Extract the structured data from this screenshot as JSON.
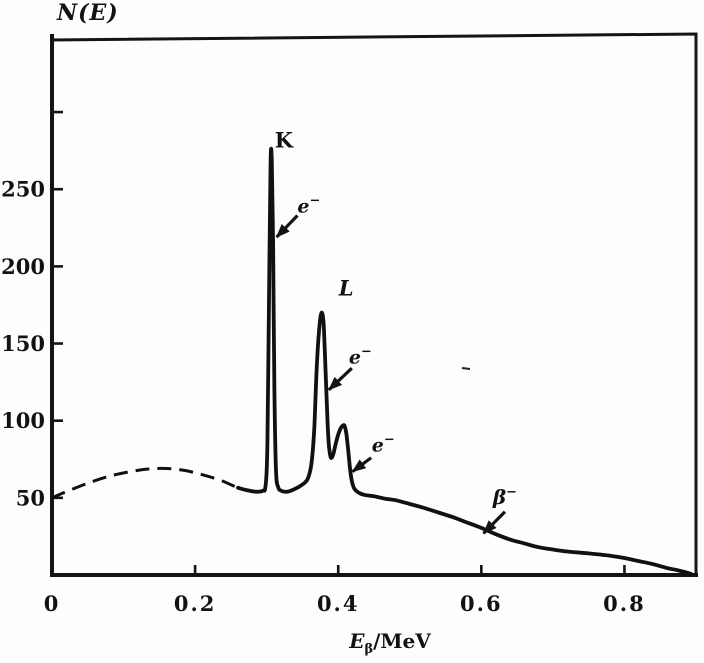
{
  "figure": {
    "y_axis_title": "N(E)",
    "x_axis_title": {
      "symbol": "E",
      "subscript": "β",
      "unit": "/MeV"
    }
  },
  "chart_data": {
    "type": "line",
    "title": "",
    "xlabel": "Eβ/MeV",
    "ylabel": "N(E)",
    "xlim": [
      0,
      0.9
    ],
    "ylim": [
      0,
      348
    ],
    "grid": false,
    "x_ticks": [
      {
        "value": 0,
        "label": "0"
      },
      {
        "value": 0.2,
        "label": "0.2"
      },
      {
        "value": 0.4,
        "label": "0.4"
      },
      {
        "value": 0.6,
        "label": "0.6"
      },
      {
        "value": 0.8,
        "label": "0.8"
      }
    ],
    "y_ticks": [
      {
        "value": 50,
        "label": "50"
      },
      {
        "value": 100,
        "label": "100"
      },
      {
        "value": 150,
        "label": "150"
      },
      {
        "value": 200,
        "label": "200"
      },
      {
        "value": 250,
        "label": "250"
      },
      {
        "value": 300,
        "label": ""
      }
    ],
    "peaks": [
      {
        "label": "K",
        "E": 0.306,
        "N": 268
      },
      {
        "label": "L",
        "E": 0.377,
        "N": 169
      },
      {
        "label": "",
        "E": 0.408,
        "N": 97
      }
    ],
    "series": [
      {
        "name": "beta-continuum-extrapolated",
        "style": "dashed",
        "points": [
          [
            0,
            50
          ],
          [
            0.02,
            54
          ],
          [
            0.05,
            59.5
          ],
          [
            0.08,
            64
          ],
          [
            0.11,
            67
          ],
          [
            0.135,
            68.7
          ],
          [
            0.16,
            69
          ],
          [
            0.185,
            67.8
          ],
          [
            0.21,
            65
          ],
          [
            0.235,
            61.5
          ],
          [
            0.25,
            58.5
          ],
          [
            0.26,
            56.5
          ]
        ]
      },
      {
        "name": "measured-spectrum",
        "style": "solid",
        "points": [
          [
            0.26,
            56.5
          ],
          [
            0.272,
            55
          ],
          [
            0.285,
            54
          ],
          [
            0.294,
            54.5
          ],
          [
            0.2985,
            58
          ],
          [
            0.301,
            85
          ],
          [
            0.3035,
            190
          ],
          [
            0.3055,
            268
          ],
          [
            0.3072,
            268
          ],
          [
            0.309,
            215
          ],
          [
            0.3108,
            120
          ],
          [
            0.313,
            68
          ],
          [
            0.316,
            57
          ],
          [
            0.321,
            54.5
          ],
          [
            0.329,
            54
          ],
          [
            0.338,
            55.5
          ],
          [
            0.348,
            58
          ],
          [
            0.357,
            62
          ],
          [
            0.3625,
            72
          ],
          [
            0.3665,
            95
          ],
          [
            0.37,
            135
          ],
          [
            0.3735,
            160
          ],
          [
            0.376,
            169
          ],
          [
            0.378,
            169
          ],
          [
            0.38,
            160
          ],
          [
            0.3825,
            130
          ],
          [
            0.385,
            100
          ],
          [
            0.387,
            84
          ],
          [
            0.389,
            77
          ],
          [
            0.391,
            76
          ],
          [
            0.3935,
            79
          ],
          [
            0.3965,
            85
          ],
          [
            0.4,
            91
          ],
          [
            0.404,
            95.5
          ],
          [
            0.407,
            97
          ],
          [
            0.409,
            96.5
          ],
          [
            0.4115,
            91
          ],
          [
            0.414,
            81
          ],
          [
            0.4165,
            69
          ],
          [
            0.419,
            61
          ],
          [
            0.4225,
            56
          ],
          [
            0.428,
            53.5
          ],
          [
            0.436,
            52
          ],
          [
            0.45,
            51
          ],
          [
            0.465,
            49.5
          ],
          [
            0.48,
            48.5
          ],
          [
            0.5,
            46
          ],
          [
            0.52,
            43.5
          ],
          [
            0.54,
            40.5
          ],
          [
            0.56,
            37.5
          ],
          [
            0.58,
            34
          ],
          [
            0.6,
            30.5
          ],
          [
            0.62,
            26.5
          ],
          [
            0.64,
            23
          ],
          [
            0.66,
            20.5
          ],
          [
            0.68,
            18
          ],
          [
            0.7,
            16.5
          ],
          [
            0.72,
            15.2
          ],
          [
            0.75,
            14
          ],
          [
            0.78,
            12.5
          ],
          [
            0.8,
            11
          ],
          [
            0.82,
            9
          ],
          [
            0.84,
            7
          ],
          [
            0.86,
            4.5
          ],
          [
            0.875,
            3
          ],
          [
            0.893,
            0.8
          ]
        ]
      }
    ],
    "annotations": [
      {
        "id": "K",
        "text": "K",
        "class": "peak-upright",
        "E": 0.324,
        "N": 277
      },
      {
        "id": "L",
        "text": "L",
        "class": "peak-italic",
        "E": 0.411,
        "N": 181
      },
      {
        "id": "e1",
        "text": "e",
        "sup": "−",
        "class": "electron",
        "E": 0.359,
        "N": 235,
        "arrow": {
          "from": [
            0.343,
            233
          ],
          "to": [
            0.314,
            219
          ]
        }
      },
      {
        "id": "e2",
        "text": "e",
        "sup": "−",
        "class": "electron",
        "E": 0.431,
        "N": 137,
        "arrow": {
          "from": [
            0.419,
            134
          ],
          "to": [
            0.387,
            120
          ]
        }
      },
      {
        "id": "e3",
        "text": "e",
        "sup": "−",
        "class": "electron",
        "E": 0.463,
        "N": 80,
        "arrow": {
          "from": [
            0.446,
            76
          ],
          "to": [
            0.42,
            67
          ]
        }
      },
      {
        "id": "beta",
        "text": "β",
        "sup": "−",
        "class": "beta",
        "E": 0.633,
        "N": 46,
        "arrow": {
          "from": [
            0.633,
            41
          ],
          "to": [
            0.603,
            27
          ]
        }
      }
    ]
  }
}
